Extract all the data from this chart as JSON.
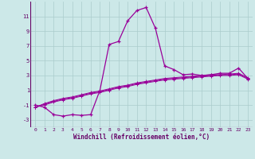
{
  "xlabel": "Windchill (Refroidissement éolien,°C)",
  "x_values": [
    0,
    1,
    2,
    3,
    4,
    5,
    6,
    7,
    8,
    9,
    10,
    11,
    12,
    13,
    14,
    15,
    16,
    17,
    18,
    19,
    20,
    21,
    22,
    23
  ],
  "line1_y": [
    -1,
    -1.3,
    -2.3,
    -2.5,
    -2.3,
    -2.4,
    -2.3,
    1.0,
    7.2,
    7.6,
    10.4,
    11.8,
    12.2,
    9.4,
    4.3,
    3.8,
    3.1,
    3.2,
    3.0,
    3.1,
    3.3,
    3.3,
    4.0,
    2.6
  ],
  "line2_y": [
    -1.3,
    -1.0,
    -0.6,
    -0.3,
    -0.1,
    0.2,
    0.5,
    0.7,
    1.0,
    1.3,
    1.5,
    1.8,
    2.0,
    2.2,
    2.4,
    2.5,
    2.6,
    2.7,
    2.8,
    2.9,
    3.0,
    3.0,
    3.1,
    2.5
  ],
  "line3_y": [
    -1.3,
    -0.9,
    -0.5,
    -0.2,
    0.0,
    0.3,
    0.6,
    0.8,
    1.1,
    1.4,
    1.6,
    1.9,
    2.1,
    2.3,
    2.5,
    2.6,
    2.7,
    2.8,
    2.9,
    3.0,
    3.1,
    3.1,
    3.2,
    2.6
  ],
  "line4_y": [
    -1.3,
    -0.8,
    -0.4,
    -0.1,
    0.1,
    0.4,
    0.7,
    0.9,
    1.2,
    1.5,
    1.7,
    2.0,
    2.2,
    2.4,
    2.6,
    2.7,
    2.8,
    2.9,
    3.0,
    3.1,
    3.1,
    3.2,
    3.3,
    2.7
  ],
  "line_color": "#990099",
  "bg_color": "#cce8e8",
  "grid_color": "#aacccc",
  "ylim": [
    -4,
    13
  ],
  "xlim": [
    -0.5,
    23.5
  ],
  "yticks": [
    -3,
    -1,
    1,
    3,
    5,
    7,
    9,
    11
  ],
  "xticks": [
    0,
    1,
    2,
    3,
    4,
    5,
    6,
    7,
    8,
    9,
    10,
    11,
    12,
    13,
    14,
    15,
    16,
    17,
    18,
    19,
    20,
    21,
    22,
    23
  ],
  "tick_fontsize": 4.5,
  "label_fontsize": 5.5
}
